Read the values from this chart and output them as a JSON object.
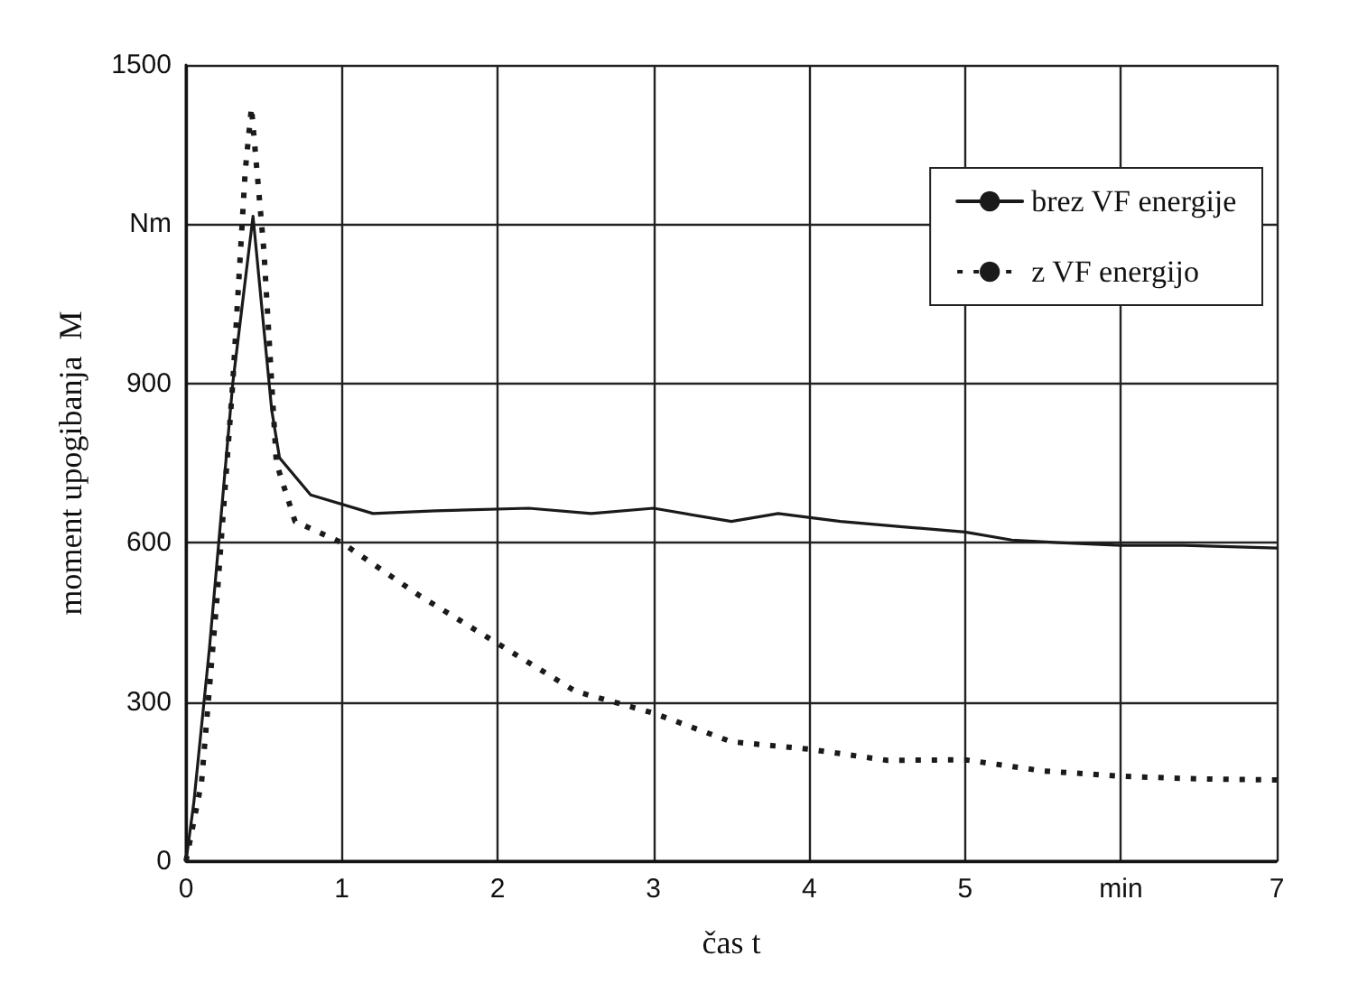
{
  "chart_data": {
    "type": "line",
    "xlabel": "čas t",
    "ylabel": "moment upogibanja  M",
    "xlim": [
      0,
      7
    ],
    "xticks": [
      0,
      1,
      2,
      3,
      4,
      5,
      {
        "value": 6,
        "label": "min"
      },
      7
    ],
    "ylim": [
      0,
      1500
    ],
    "yticks": [
      0,
      300,
      600,
      900,
      {
        "value": 1200,
        "label": "Nm"
      },
      1500
    ],
    "grid": true,
    "legend": "top right",
    "marker": "none",
    "series": [
      {
        "name": "brez VF energije",
        "color": "#1a1a1a",
        "line_style": "solid",
        "x": [
          0,
          0.05,
          0.15,
          0.3,
          0.43,
          0.55,
          0.6,
          0.8,
          1.2,
          1.6,
          2.2,
          2.6,
          3,
          3.5,
          3.8,
          4.2,
          4.6,
          5,
          5.3,
          5.6,
          6,
          6.4,
          7
        ],
        "values": [
          0,
          110,
          400,
          900,
          1215,
          850,
          760,
          690,
          655,
          660,
          665,
          655,
          665,
          640,
          655,
          640,
          630,
          620,
          605,
          600,
          595,
          595,
          590
        ]
      },
      {
        "name": "z VF energijo",
        "color": "#1a1a1a",
        "line_style": "dotted",
        "x": [
          0,
          0.1,
          0.2,
          0.3,
          0.38,
          0.42,
          0.5,
          0.58,
          0.7,
          1,
          1.5,
          2,
          2.5,
          3,
          3.5,
          4,
          4.5,
          5,
          5.5,
          6,
          6.5,
          7
        ],
        "values": [
          0,
          150,
          500,
          900,
          1300,
          1420,
          1150,
          750,
          640,
          600,
          500,
          410,
          320,
          279,
          225,
          211,
          190,
          191,
          170,
          160,
          155,
          153
        ]
      }
    ]
  }
}
